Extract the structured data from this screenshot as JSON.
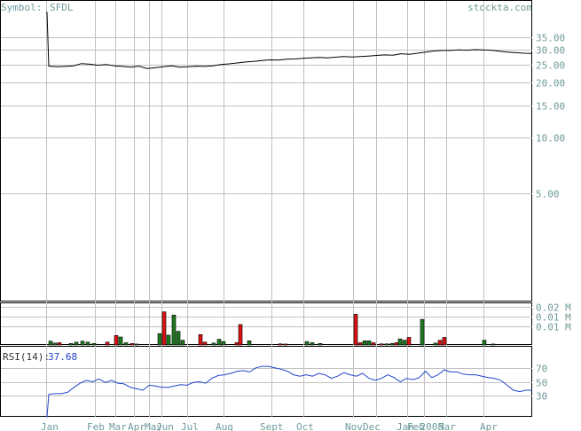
{
  "header": {
    "symbol_label": "Symbol:",
    "symbol": "SFDL",
    "site": "stockta.com"
  },
  "colors": {
    "grid": "#c0c0c0",
    "price_line": "#000000",
    "vol_up": "#1e7a1e",
    "vol_down": "#dd1111",
    "rsi_line": "#2244cc",
    "label": "#6f9a9a"
  },
  "chart_data": [
    {
      "type": "line",
      "panel": "price",
      "y_scale": "log",
      "y_ticks": [
        "35.00",
        "30.00",
        "25.00",
        "20.00",
        "15.00",
        "10.00",
        "5.00"
      ],
      "y_tick_values": [
        35,
        30,
        25,
        20,
        15,
        10,
        5
      ],
      "ylim": [
        1.3,
        48
      ],
      "x_ticks": [
        "Jan",
        "Feb",
        "Mar",
        "Apr",
        "May",
        "Jun",
        "Jul",
        "Aug",
        "Sept",
        "Oct",
        "Nov",
        "Dec",
        "Jan 2005",
        "Feb",
        "Mar",
        "Apr"
      ],
      "series": [
        {
          "values": [
            48,
            48,
            24.5,
            24.3,
            24.4,
            24.6,
            25.3,
            25.1,
            24.8,
            25.0,
            24.6,
            24.4,
            24.2,
            24.5,
            23.8,
            24.0,
            24.3,
            24.6,
            24.2,
            24.3,
            24.5,
            24.4,
            24.6,
            25.0,
            25.2,
            25.5,
            25.8,
            26.0,
            26.3,
            26.5,
            26.4,
            26.7,
            26.8,
            27.0,
            27.2,
            27.3,
            27.2,
            27.4,
            27.6,
            27.5,
            27.6,
            27.8,
            28.0,
            28.2,
            28.1,
            28.6,
            28.4,
            28.8,
            29.2,
            29.6,
            29.8,
            29.8,
            30.0,
            29.9,
            30.1,
            30.0,
            29.9,
            29.5,
            29.2,
            29.0,
            28.8,
            28.7
          ]
        }
      ]
    },
    {
      "type": "bar",
      "panel": "volume",
      "y_ticks": [
        "0.02 M",
        "0.01 M",
        "0.01 M"
      ],
      "y_tick_values": [
        0.02,
        0.015,
        0.01
      ],
      "ylim": [
        0,
        0.022
      ],
      "bars": [
        {
          "x": 57,
          "v": 0.002,
          "up": true
        },
        {
          "x": 62,
          "v": 0.001,
          "up": true
        },
        {
          "x": 67,
          "v": 0.0012,
          "up": false
        },
        {
          "x": 80,
          "v": 0.0008,
          "up": true
        },
        {
          "x": 86,
          "v": 0.0015,
          "up": true
        },
        {
          "x": 93,
          "v": 0.002,
          "up": true
        },
        {
          "x": 99,
          "v": 0.0015,
          "up": true
        },
        {
          "x": 106,
          "v": 0.0008,
          "up": true
        },
        {
          "x": 121,
          "v": 0.0015,
          "up": false
        },
        {
          "x": 131,
          "v": 0.005,
          "up": false
        },
        {
          "x": 136,
          "v": 0.0042,
          "up": true
        },
        {
          "x": 142,
          "v": 0.0012,
          "up": true
        },
        {
          "x": 149,
          "v": 0.0008,
          "up": false
        },
        {
          "x": 154,
          "v": 0.0005,
          "up": true
        },
        {
          "x": 180,
          "v": 0.006,
          "up": true
        },
        {
          "x": 185,
          "v": 0.0175,
          "up": false
        },
        {
          "x": 190,
          "v": 0.0052,
          "up": true
        },
        {
          "x": 196,
          "v": 0.0158,
          "up": true
        },
        {
          "x": 201,
          "v": 0.0072,
          "up": true
        },
        {
          "x": 206,
          "v": 0.0025,
          "up": true
        },
        {
          "x": 226,
          "v": 0.0055,
          "up": false
        },
        {
          "x": 231,
          "v": 0.0015,
          "up": false
        },
        {
          "x": 241,
          "v": 0.001,
          "up": true
        },
        {
          "x": 247,
          "v": 0.003,
          "up": true
        },
        {
          "x": 252,
          "v": 0.0018,
          "up": true
        },
        {
          "x": 267,
          "v": 0.0012,
          "up": false
        },
        {
          "x": 271,
          "v": 0.0108,
          "up": false
        },
        {
          "x": 281,
          "v": 0.0022,
          "up": true
        },
        {
          "x": 316,
          "v": 0.0006,
          "up": false
        },
        {
          "x": 322,
          "v": 0.0005,
          "up": false
        },
        {
          "x": 346,
          "v": 0.0018,
          "up": true
        },
        {
          "x": 352,
          "v": 0.0012,
          "up": true
        },
        {
          "x": 361,
          "v": 0.0008,
          "up": true
        },
        {
          "x": 401,
          "v": 0.0162,
          "up": false
        },
        {
          "x": 406,
          "v": 0.0012,
          "up": false
        },
        {
          "x": 411,
          "v": 0.0022,
          "up": true
        },
        {
          "x": 416,
          "v": 0.0022,
          "up": true
        },
        {
          "x": 421,
          "v": 0.0012,
          "up": false
        },
        {
          "x": 430,
          "v": 0.0006,
          "up": false
        },
        {
          "x": 436,
          "v": 0.0006,
          "up": true
        },
        {
          "x": 442,
          "v": 0.0008,
          "up": true
        },
        {
          "x": 447,
          "v": 0.0012,
          "up": false
        },
        {
          "x": 451,
          "v": 0.0032,
          "up": true
        },
        {
          "x": 456,
          "v": 0.0025,
          "up": true
        },
        {
          "x": 461,
          "v": 0.004,
          "up": false
        },
        {
          "x": 476,
          "v": 0.0135,
          "up": true
        },
        {
          "x": 491,
          "v": 0.001,
          "up": true
        },
        {
          "x": 496,
          "v": 0.0025,
          "up": false
        },
        {
          "x": 501,
          "v": 0.004,
          "up": false
        },
        {
          "x": 546,
          "v": 0.0025,
          "up": true
        },
        {
          "x": 556,
          "v": 0.0005,
          "up": true
        }
      ]
    },
    {
      "type": "line",
      "panel": "rsi",
      "label": "RSI(14):",
      "last_value": "37.68",
      "y_ticks": [
        "70",
        "50",
        "30"
      ],
      "y_tick_values": [
        70,
        50,
        30
      ],
      "ylim": [
        0,
        100
      ],
      "series": [
        {
          "values": [
            0,
            0,
            32,
            33,
            33,
            35,
            42,
            48,
            52,
            50,
            54,
            49,
            52,
            48,
            47,
            42,
            40,
            38,
            45,
            44,
            42,
            42,
            44,
            46,
            45,
            49,
            50,
            48,
            55,
            59,
            60,
            62,
            65,
            66,
            64,
            70,
            72,
            72,
            70,
            68,
            65,
            60,
            58,
            60,
            58,
            62,
            60,
            55,
            58,
            63,
            60,
            58,
            62,
            55,
            52,
            55,
            60,
            56,
            50,
            55,
            53,
            56,
            65,
            56,
            60,
            67,
            64,
            64,
            61,
            60,
            60,
            58,
            56,
            55,
            52,
            45,
            38,
            36,
            38,
            38
          ]
        }
      ]
    }
  ]
}
